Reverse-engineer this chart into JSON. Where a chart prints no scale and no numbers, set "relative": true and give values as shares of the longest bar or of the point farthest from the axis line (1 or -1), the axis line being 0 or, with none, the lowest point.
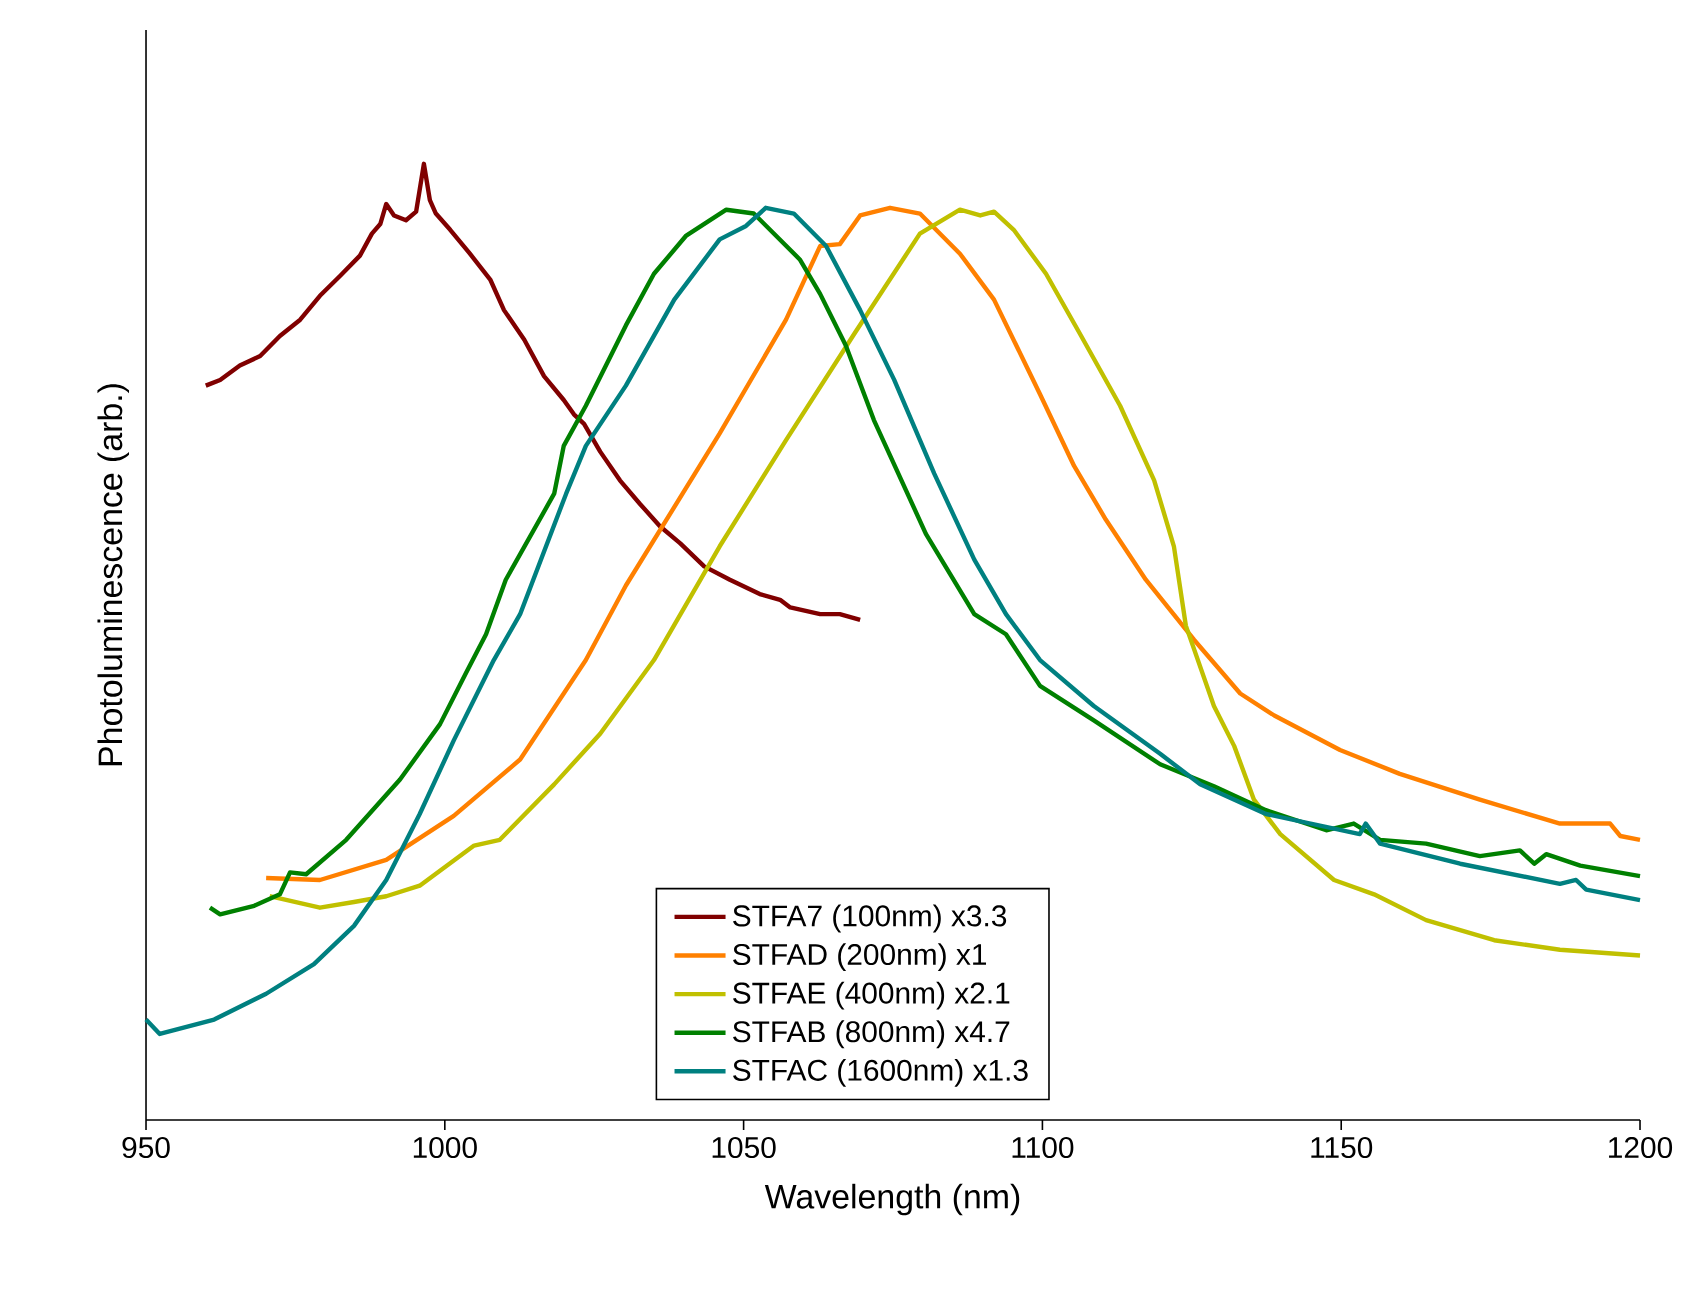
{
  "chart_data": {
    "type": "line",
    "xlabel": "Wavelength (nm)",
    "ylabel": "Photoluminescence (arb.)",
    "relative": true,
    "xlim": [
      950,
      1200
    ],
    "xticks": [
      950,
      1000,
      1050,
      1100,
      1150,
      1200
    ],
    "grid": false,
    "legend": "bottom",
    "marker": "none",
    "line_style": "solid",
    "series": [
      {
        "name": "STFA7 (100nm) x3.3",
        "color": "#800000",
        "x": [
          960.0,
          962.4,
          965.7,
          969.1,
          972.4,
          975.8,
          979.1,
          982.5,
          985.8,
          987.8,
          989.2,
          990.2,
          991.5,
          993.5,
          995.2,
          996.5,
          997.5,
          998.5,
          1000.9,
          1004.2,
          1007.6,
          1009.9,
          1013.3,
          1016.6,
          1019.9,
          1021.6,
          1023.3,
          1026.0,
          1029.3,
          1032.7,
          1036.0,
          1039.4,
          1043.4,
          1047.7,
          1052.7,
          1056.1,
          1057.8,
          1062.8,
          1066.1,
          1069.5
        ],
        "values": [
          0.768,
          0.774,
          0.789,
          0.799,
          0.82,
          0.837,
          0.862,
          0.883,
          0.904,
          0.927,
          0.937,
          0.958,
          0.946,
          0.941,
          0.95,
          1.0,
          0.962,
          0.948,
          0.931,
          0.906,
          0.879,
          0.847,
          0.816,
          0.778,
          0.753,
          0.738,
          0.728,
          0.699,
          0.669,
          0.644,
          0.621,
          0.603,
          0.579,
          0.565,
          0.55,
          0.544,
          0.536,
          0.529,
          0.529,
          0.523
        ]
      },
      {
        "name": "STFAD (200nm) x1",
        "color": "#ff8000",
        "x": [
          970.1,
          979.1,
          990.2,
          1001.5,
          1012.6,
          1023.6,
          1030.3,
          1046.0,
          1057.1,
          1062.8,
          1066.1,
          1069.5,
          1074.5,
          1079.5,
          1086.2,
          1091.9,
          1099.6,
          1105.3,
          1110.6,
          1117.3,
          1125.4,
          1133.1,
          1138.8,
          1149.8,
          1159.8,
          1173.2,
          1186.6,
          1195.0,
          1196.7,
          1200.0
        ],
        "values": [
          0.253,
          0.251,
          0.272,
          0.318,
          0.377,
          0.481,
          0.559,
          0.718,
          0.837,
          0.914,
          0.916,
          0.946,
          0.954,
          0.948,
          0.906,
          0.858,
          0.759,
          0.684,
          0.628,
          0.565,
          0.502,
          0.446,
          0.423,
          0.387,
          0.362,
          0.335,
          0.31,
          0.31,
          0.297,
          0.293
        ]
      },
      {
        "name": "STFAE (400nm) x2.1",
        "color": "#c0c000",
        "x": [
          970.7,
          979.1,
          984.8,
          990.2,
          995.8,
          1004.9,
          1009.2,
          1018.3,
          1026.0,
          1035.0,
          1046.0,
          1057.1,
          1068.5,
          1079.5,
          1086.2,
          1089.6,
          1091.9,
          1095.2,
          1100.6,
          1106.3,
          1113.0,
          1118.7,
          1122.0,
          1124.0,
          1128.7,
          1132.1,
          1135.4,
          1139.8,
          1148.8,
          1155.5,
          1164.2,
          1175.6,
          1186.6,
          1200.0
        ],
        "values": [
          0.234,
          0.222,
          0.228,
          0.234,
          0.245,
          0.287,
          0.293,
          0.351,
          0.404,
          0.481,
          0.6,
          0.711,
          0.822,
          0.927,
          0.952,
          0.946,
          0.95,
          0.931,
          0.885,
          0.822,
          0.747,
          0.669,
          0.6,
          0.517,
          0.433,
          0.391,
          0.335,
          0.299,
          0.251,
          0.236,
          0.209,
          0.188,
          0.178,
          0.172
        ]
      },
      {
        "name": "STFAB (800nm) x4.7",
        "color": "#008000",
        "x": [
          960.7,
          962.4,
          968.1,
          972.4,
          974.1,
          976.8,
          983.5,
          992.5,
          999.2,
          1003.5,
          1006.9,
          1010.2,
          1018.3,
          1019.9,
          1023.6,
          1030.3,
          1035.0,
          1040.4,
          1047.1,
          1051.7,
          1059.4,
          1062.8,
          1067.1,
          1071.8,
          1080.5,
          1088.6,
          1093.9,
          1099.6,
          1108.6,
          1119.7,
          1128.7,
          1137.4,
          1147.5,
          1152.1,
          1156.5,
          1164.2,
          1173.2,
          1179.9,
          1182.3,
          1184.3,
          1190.0,
          1200.0
        ],
        "values": [
          0.222,
          0.215,
          0.224,
          0.236,
          0.259,
          0.257,
          0.293,
          0.356,
          0.414,
          0.467,
          0.508,
          0.565,
          0.655,
          0.705,
          0.747,
          0.831,
          0.885,
          0.925,
          0.952,
          0.948,
          0.9,
          0.864,
          0.81,
          0.732,
          0.613,
          0.529,
          0.508,
          0.454,
          0.418,
          0.372,
          0.349,
          0.324,
          0.303,
          0.31,
          0.293,
          0.289,
          0.276,
          0.282,
          0.268,
          0.278,
          0.266,
          0.255
        ]
      },
      {
        "name": "STFAC (1600nm) x1.3",
        "color": "#008080",
        "x": [
          950.0,
          952.3,
          961.4,
          970.1,
          978.1,
          984.8,
          990.2,
          995.8,
          1001.5,
          1008.2,
          1012.6,
          1020.3,
          1023.6,
          1030.3,
          1038.4,
          1046.0,
          1050.4,
          1053.7,
          1058.4,
          1063.8,
          1069.5,
          1075.2,
          1081.9,
          1088.6,
          1093.9,
          1099.6,
          1108.6,
          1119.7,
          1126.4,
          1137.4,
          1153.1,
          1154.1,
          1156.5,
          1169.9,
          1186.6,
          1189.3,
          1191.0,
          1200.0
        ],
        "values": [
          0.105,
          0.09,
          0.105,
          0.132,
          0.163,
          0.203,
          0.251,
          0.32,
          0.397,
          0.481,
          0.529,
          0.655,
          0.705,
          0.768,
          0.858,
          0.921,
          0.935,
          0.954,
          0.948,
          0.914,
          0.847,
          0.774,
          0.676,
          0.586,
          0.529,
          0.481,
          0.433,
          0.383,
          0.351,
          0.32,
          0.299,
          0.31,
          0.289,
          0.268,
          0.247,
          0.251,
          0.241,
          0.23
        ]
      }
    ]
  }
}
